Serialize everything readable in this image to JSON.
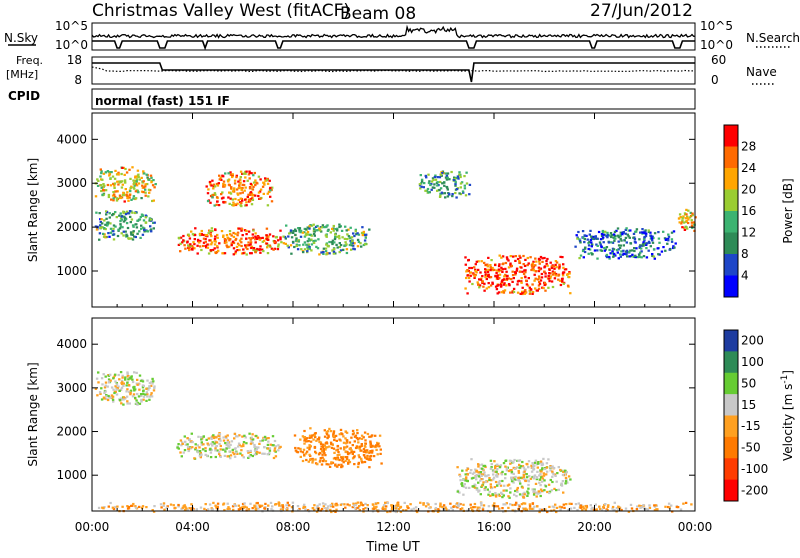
{
  "header": {
    "radar_name": "Christmas Valley West (fitACF)",
    "beam": "Beam 08",
    "date": "27/Jun/2012"
  },
  "strips": {
    "nsky_label": "N.Sky",
    "nsky_ticks": [
      "10^5",
      "10^0"
    ],
    "nsearch_label": "N.Search",
    "nsearch_ticks": [
      "10^5",
      "10^0"
    ],
    "freq_label": "Freq.",
    "freq_unit": "[MHz]",
    "freq_ticks": [
      "18",
      "8"
    ],
    "nave_label": "Nave",
    "nave_ticks": [
      "60",
      "0"
    ],
    "cpid_label": "CPID",
    "cpid_value": "normal (fast) 151 IF"
  },
  "chart_data": [
    {
      "type": "heatmap",
      "title": "",
      "xlabel": "",
      "ylabel": "Slant Range [km]",
      "x_ticks": [
        "00:00",
        "04:00",
        "08:00",
        "12:00",
        "16:00",
        "20:00",
        "00:00"
      ],
      "xlim_hours": [
        0,
        24
      ],
      "y_ticks": [
        1000,
        2000,
        3000,
        4000
      ],
      "ylim_km": [
        180,
        4600
      ],
      "colorbar": {
        "label": "Power [dB]",
        "ticks": [
          "4",
          "8",
          "12",
          "16",
          "20",
          "24",
          "28"
        ],
        "colors": [
          "#0000ff",
          "#1e46c8",
          "#2e8b57",
          "#3cb371",
          "#9acd32",
          "#ffa500",
          "#ff6a00",
          "#ff0000"
        ]
      },
      "features": [
        {
          "t": [
            0.1,
            2.5
          ],
          "range_km": [
            2600,
            3400
          ],
          "power_db": 20
        },
        {
          "t": [
            0.1,
            2.5
          ],
          "range_km": [
            1700,
            2400
          ],
          "power_db": 12
        },
        {
          "t": [
            3.3,
            7.5
          ],
          "range_km": [
            1400,
            2000
          ],
          "power_db": 26
        },
        {
          "t": [
            4.5,
            7.2
          ],
          "range_km": [
            2500,
            3300
          ],
          "power_db": 24
        },
        {
          "t": [
            7.5,
            11.0
          ],
          "range_km": [
            1400,
            2100
          ],
          "power_db": 14
        },
        {
          "t": [
            13.0,
            15.0
          ],
          "range_km": [
            2700,
            3300
          ],
          "power_db": 12
        },
        {
          "t": [
            14.8,
            19.0
          ],
          "range_km": [
            500,
            1400
          ],
          "power_db": 28
        },
        {
          "t": [
            19.2,
            23.2
          ],
          "range_km": [
            1300,
            2000
          ],
          "power_db": 8
        },
        {
          "t": [
            23.3,
            24.0
          ],
          "range_km": [
            1900,
            2500
          ],
          "power_db": 22
        }
      ]
    },
    {
      "type": "heatmap",
      "title": "",
      "xlabel": "Time UT",
      "ylabel": "Slant Range [km]",
      "x_ticks": [
        "00:00",
        "04:00",
        "08:00",
        "12:00",
        "16:00",
        "20:00",
        "00:00"
      ],
      "xlim_hours": [
        0,
        24
      ],
      "y_ticks": [
        1000,
        2000,
        3000,
        4000
      ],
      "ylim_km": [
        180,
        4600
      ],
      "colorbar": {
        "label": "Velocity [m s",
        "label_exponent": "-1",
        "label_close": "]",
        "ticks": [
          "200",
          "100",
          "50",
          "15",
          "-15",
          "-50",
          "-100",
          "-200"
        ],
        "colors": [
          "#1e3ca0",
          "#2e8b57",
          "#66cc33",
          "#c8c8c8",
          "#ffa020",
          "#ff7a00",
          "#ff3c00",
          "#ff0000"
        ]
      },
      "features": [
        {
          "t": [
            0.1,
            2.5
          ],
          "range_km": [
            2600,
            3400
          ],
          "velocity": 0
        },
        {
          "t": [
            3.3,
            7.5
          ],
          "range_km": [
            1400,
            2000
          ],
          "velocity": 0
        },
        {
          "t": [
            8.0,
            11.5
          ],
          "range_km": [
            1200,
            2100
          ],
          "velocity": -60
        },
        {
          "t": [
            14.5,
            19.0
          ],
          "range_km": [
            500,
            1400
          ],
          "velocity": 0
        },
        {
          "t": [
            0.0,
            24.0
          ],
          "range_km": [
            180,
            400
          ],
          "velocity": -30
        }
      ]
    }
  ]
}
